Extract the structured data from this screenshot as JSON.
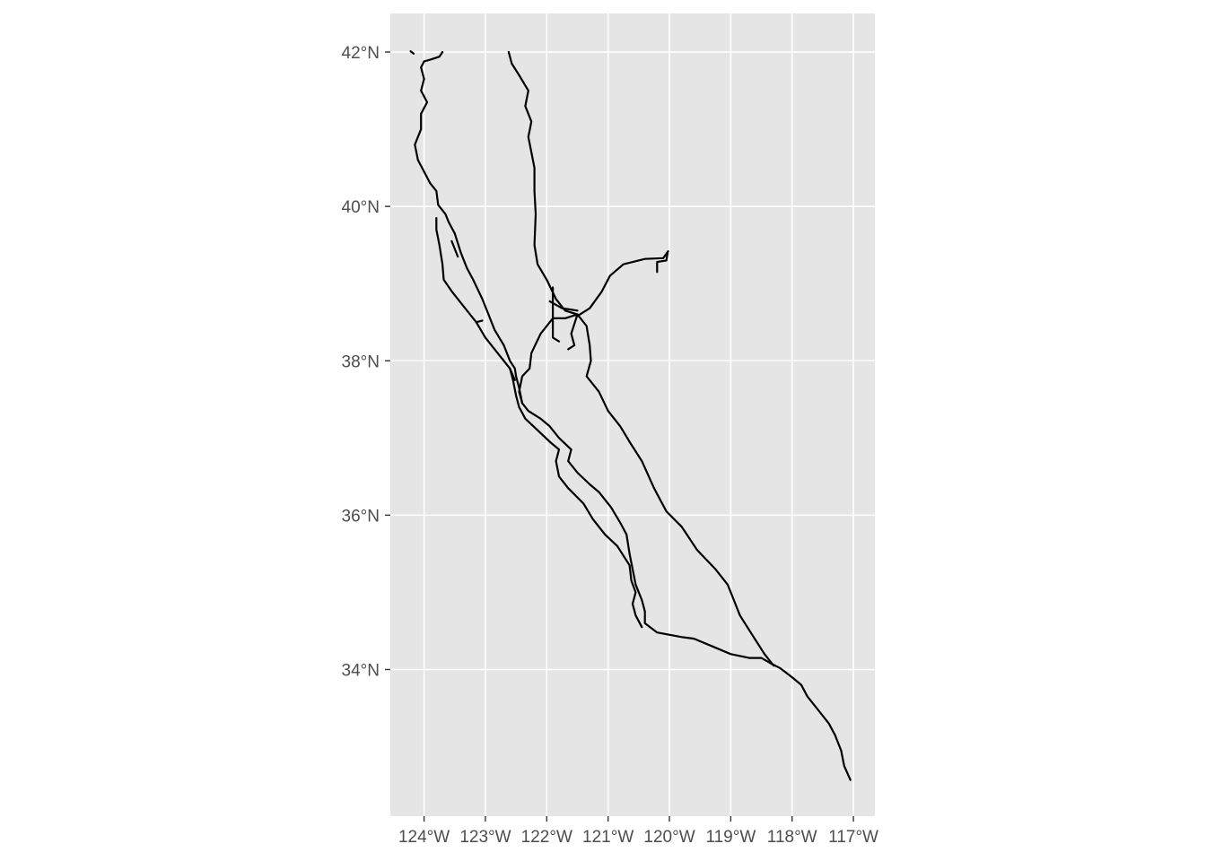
{
  "colors": {
    "panel_background": "#e5e5e5",
    "gridline": "#ffffff",
    "route_line": "#000000",
    "tick_label": "#4d4d4d"
  },
  "chart_data": {
    "type": "map",
    "grid": true,
    "xlim": [
      -124.55,
      -116.65
    ],
    "ylim": [
      32.1,
      42.5
    ],
    "x_ticks": [
      {
        "value": -124,
        "label": "124°W"
      },
      {
        "value": -123,
        "label": "123°W"
      },
      {
        "value": -122,
        "label": "122°W"
      },
      {
        "value": -121,
        "label": "121°W"
      },
      {
        "value": -120,
        "label": "120°W"
      },
      {
        "value": -119,
        "label": "119°W"
      },
      {
        "value": -118,
        "label": "118°W"
      },
      {
        "value": -117,
        "label": "117°W"
      }
    ],
    "y_ticks": [
      {
        "value": 34,
        "label": "34°N"
      },
      {
        "value": 36,
        "label": "36°N"
      },
      {
        "value": 38,
        "label": "38°N"
      },
      {
        "value": 40,
        "label": "40°N"
      },
      {
        "value": 42,
        "label": "42°N"
      }
    ],
    "routes": [
      {
        "coords": [
          [
            -124.22,
            42.01
          ],
          [
            -124.17,
            41.98
          ]
        ]
      },
      {
        "coords": [
          [
            -123.7,
            42.0
          ],
          [
            -123.75,
            41.94
          ],
          [
            -123.9,
            41.9
          ],
          [
            -124.0,
            41.88
          ],
          [
            -124.05,
            41.8
          ],
          [
            -124.0,
            41.65
          ],
          [
            -124.05,
            41.5
          ],
          [
            -123.95,
            41.35
          ],
          [
            -124.05,
            41.2
          ],
          [
            -124.05,
            41.0
          ],
          [
            -124.15,
            40.8
          ],
          [
            -124.1,
            40.6
          ],
          [
            -124.0,
            40.45
          ],
          [
            -123.9,
            40.3
          ],
          [
            -123.8,
            40.2
          ],
          [
            -123.77,
            40.02
          ],
          [
            -123.65,
            39.9
          ],
          [
            -123.6,
            39.8
          ],
          [
            -123.5,
            39.65
          ],
          [
            -123.4,
            39.4
          ],
          [
            -123.3,
            39.2
          ],
          [
            -123.2,
            39.05
          ],
          [
            -123.05,
            38.8
          ],
          [
            -122.95,
            38.6
          ],
          [
            -122.85,
            38.4
          ],
          [
            -122.7,
            38.2
          ],
          [
            -122.6,
            38.0
          ],
          [
            -122.52,
            37.9
          ],
          [
            -122.5,
            37.8
          ],
          [
            -122.45,
            37.65
          ],
          [
            -122.4,
            37.45
          ],
          [
            -122.3,
            37.35
          ],
          [
            -122.1,
            37.25
          ],
          [
            -121.95,
            37.15
          ],
          [
            -121.8,
            37.0
          ],
          [
            -121.6,
            36.85
          ],
          [
            -121.65,
            36.7
          ],
          [
            -121.5,
            36.55
          ],
          [
            -121.3,
            36.4
          ],
          [
            -121.15,
            36.3
          ],
          [
            -120.95,
            36.1
          ],
          [
            -120.8,
            35.9
          ],
          [
            -120.7,
            35.75
          ],
          [
            -120.65,
            35.5
          ],
          [
            -120.6,
            35.3
          ],
          [
            -120.55,
            35.1
          ],
          [
            -120.45,
            34.9
          ],
          [
            -120.4,
            34.75
          ],
          [
            -120.4,
            34.6
          ],
          [
            -120.2,
            34.48
          ],
          [
            -119.8,
            34.42
          ],
          [
            -119.6,
            34.4
          ],
          [
            -119.3,
            34.3
          ],
          [
            -119.0,
            34.2
          ],
          [
            -118.7,
            34.15
          ],
          [
            -118.5,
            34.15
          ],
          [
            -118.35,
            34.08
          ],
          [
            -118.2,
            34.02
          ],
          [
            -118.0,
            33.9
          ],
          [
            -117.85,
            33.8
          ],
          [
            -117.75,
            33.65
          ],
          [
            -117.6,
            33.5
          ],
          [
            -117.4,
            33.3
          ],
          [
            -117.3,
            33.15
          ],
          [
            -117.2,
            32.95
          ],
          [
            -117.15,
            32.75
          ],
          [
            -117.05,
            32.57
          ]
        ]
      },
      {
        "coords": [
          [
            -122.62,
            42.0
          ],
          [
            -122.57,
            41.85
          ],
          [
            -122.45,
            41.7
          ],
          [
            -122.3,
            41.5
          ],
          [
            -122.35,
            41.3
          ],
          [
            -122.25,
            41.1
          ],
          [
            -122.3,
            40.9
          ],
          [
            -122.25,
            40.7
          ],
          [
            -122.2,
            40.5
          ],
          [
            -122.2,
            40.2
          ],
          [
            -122.18,
            39.9
          ],
          [
            -122.2,
            39.5
          ],
          [
            -122.15,
            39.25
          ],
          [
            -122.0,
            39.05
          ],
          [
            -121.85,
            38.8
          ],
          [
            -121.7,
            38.65
          ],
          [
            -121.5,
            38.6
          ],
          [
            -121.35,
            38.45
          ],
          [
            -121.3,
            38.2
          ],
          [
            -121.28,
            38.0
          ],
          [
            -121.35,
            37.8
          ],
          [
            -121.15,
            37.6
          ],
          [
            -121.0,
            37.35
          ],
          [
            -120.8,
            37.15
          ],
          [
            -120.65,
            36.95
          ],
          [
            -120.45,
            36.7
          ],
          [
            -120.25,
            36.35
          ],
          [
            -120.05,
            36.05
          ],
          [
            -119.8,
            35.85
          ],
          [
            -119.55,
            35.55
          ],
          [
            -119.25,
            35.3
          ],
          [
            -119.05,
            35.1
          ],
          [
            -118.95,
            34.9
          ],
          [
            -118.85,
            34.7
          ],
          [
            -118.65,
            34.45
          ],
          [
            -118.45,
            34.2
          ],
          [
            -118.3,
            34.05
          ]
        ]
      },
      {
        "coords": [
          [
            -121.5,
            38.58
          ],
          [
            -121.3,
            38.68
          ],
          [
            -121.1,
            38.9
          ],
          [
            -120.97,
            39.1
          ],
          [
            -120.75,
            39.25
          ],
          [
            -120.4,
            39.32
          ],
          [
            -120.1,
            39.33
          ],
          [
            -120.02,
            39.42
          ]
        ]
      },
      {
        "coords": [
          [
            -120.03,
            39.4
          ],
          [
            -120.05,
            39.3
          ],
          [
            -120.2,
            39.28
          ],
          [
            -120.2,
            39.15
          ]
        ]
      },
      {
        "coords": [
          [
            -121.9,
            38.95
          ],
          [
            -121.9,
            38.3
          ],
          [
            -121.8,
            38.25
          ]
        ]
      },
      {
        "coords": [
          [
            -121.5,
            38.6
          ],
          [
            -121.7,
            38.55
          ],
          [
            -121.9,
            38.55
          ],
          [
            -122.1,
            38.35
          ],
          [
            -122.25,
            38.1
          ],
          [
            -122.28,
            37.9
          ],
          [
            -122.4,
            37.8
          ],
          [
            -122.45,
            37.6
          ],
          [
            -122.4,
            37.45
          ]
        ]
      },
      {
        "coords": [
          [
            -121.5,
            38.6
          ],
          [
            -121.6,
            38.35
          ],
          [
            -121.55,
            38.2
          ],
          [
            -121.65,
            38.15
          ]
        ]
      },
      {
        "coords": [
          [
            -121.95,
            38.77
          ],
          [
            -121.75,
            38.68
          ],
          [
            -121.5,
            38.65
          ]
        ]
      },
      {
        "coords": [
          [
            -123.8,
            39.85
          ],
          [
            -123.8,
            39.7
          ],
          [
            -123.75,
            39.5
          ],
          [
            -123.7,
            39.25
          ],
          [
            -123.68,
            39.05
          ],
          [
            -123.55,
            38.9
          ],
          [
            -123.35,
            38.7
          ],
          [
            -123.15,
            38.5
          ],
          [
            -123.0,
            38.3
          ],
          [
            -122.8,
            38.1
          ],
          [
            -122.6,
            37.9
          ],
          [
            -122.55,
            37.75
          ],
          [
            -122.5,
            37.55
          ],
          [
            -122.45,
            37.4
          ],
          [
            -122.35,
            37.25
          ],
          [
            -122.15,
            37.1
          ],
          [
            -121.95,
            36.95
          ],
          [
            -121.8,
            36.85
          ],
          [
            -121.85,
            36.7
          ],
          [
            -121.8,
            36.5
          ],
          [
            -121.65,
            36.35
          ],
          [
            -121.4,
            36.15
          ],
          [
            -121.25,
            35.95
          ],
          [
            -121.05,
            35.75
          ],
          [
            -120.85,
            35.6
          ],
          [
            -120.65,
            35.35
          ],
          [
            -120.62,
            35.15
          ],
          [
            -120.55,
            35.0
          ],
          [
            -120.6,
            34.85
          ],
          [
            -120.55,
            34.7
          ],
          [
            -120.45,
            34.55
          ]
        ]
      },
      {
        "coords": [
          [
            -123.55,
            39.55
          ],
          [
            -123.45,
            39.35
          ]
        ]
      },
      {
        "coords": [
          [
            -123.15,
            38.5
          ],
          [
            -123.05,
            38.52
          ]
        ]
      },
      {
        "coords": [
          [
            -122.6,
            37.9
          ],
          [
            -122.52,
            37.75
          ]
        ]
      }
    ]
  }
}
